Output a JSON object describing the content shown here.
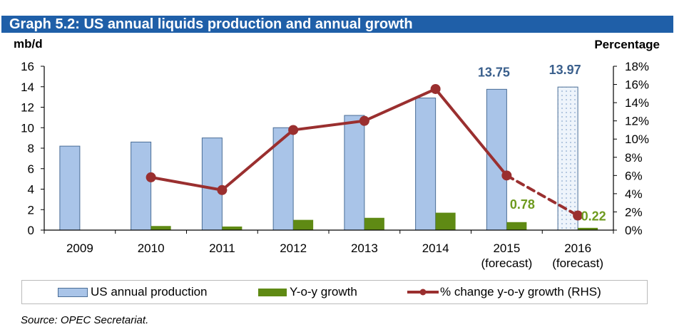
{
  "chart_data": {
    "type": "bar",
    "title": "Graph 5.2: US annual liquids production and annual growth",
    "ylabel_left": "mb/d",
    "ylabel_right": "Percentage",
    "categories": [
      "2009",
      "2010",
      "2011",
      "2012",
      "2013",
      "2014",
      "2015",
      "2016"
    ],
    "category_sublabels": [
      "",
      "",
      "",
      "",
      "",
      "",
      "(forecast)",
      "(forecast)"
    ],
    "ylim_left": [
      0,
      16
    ],
    "ylim_right": [
      0,
      18
    ],
    "yticks_left": [
      "0",
      "2",
      "4",
      "6",
      "8",
      "10",
      "12",
      "14",
      "16"
    ],
    "yticks_right": [
      "0%",
      "2%",
      "4%",
      "6%",
      "8%",
      "10%",
      "12%",
      "14%",
      "16%",
      "18%"
    ],
    "series": [
      {
        "name": "US annual production",
        "type": "bar",
        "axis": "left",
        "color": "#a9c4e8",
        "values": [
          8.2,
          8.6,
          9.0,
          10.0,
          11.2,
          12.9,
          13.75,
          13.97
        ]
      },
      {
        "name": "Y-o-y growth",
        "type": "bar",
        "axis": "left",
        "color": "#5f8a14",
        "values": [
          null,
          0.4,
          0.35,
          1.0,
          1.2,
          1.7,
          0.78,
          0.22
        ]
      },
      {
        "name": "% change y-o-y growth (RHS)",
        "type": "line",
        "axis": "right",
        "color": "#9a2f2f",
        "values": [
          null,
          5.8,
          4.4,
          11.0,
          12.0,
          15.5,
          6.0,
          1.6
        ]
      }
    ],
    "data_labels": [
      {
        "series": "US annual production",
        "category": "2015",
        "text": "13.75",
        "color": "#3a5f8c"
      },
      {
        "series": "US annual production",
        "category": "2016",
        "text": "13.97",
        "color": "#3a5f8c"
      },
      {
        "series": "Y-o-y growth",
        "category": "2015",
        "text": "0.78",
        "color": "#6e9a1e"
      },
      {
        "series": "Y-o-y growth",
        "category": "2016",
        "text": "0.22",
        "color": "#6e9a1e"
      }
    ],
    "legend": "bottom",
    "grid": false
  },
  "source": "Source: OPEC Secretariat."
}
